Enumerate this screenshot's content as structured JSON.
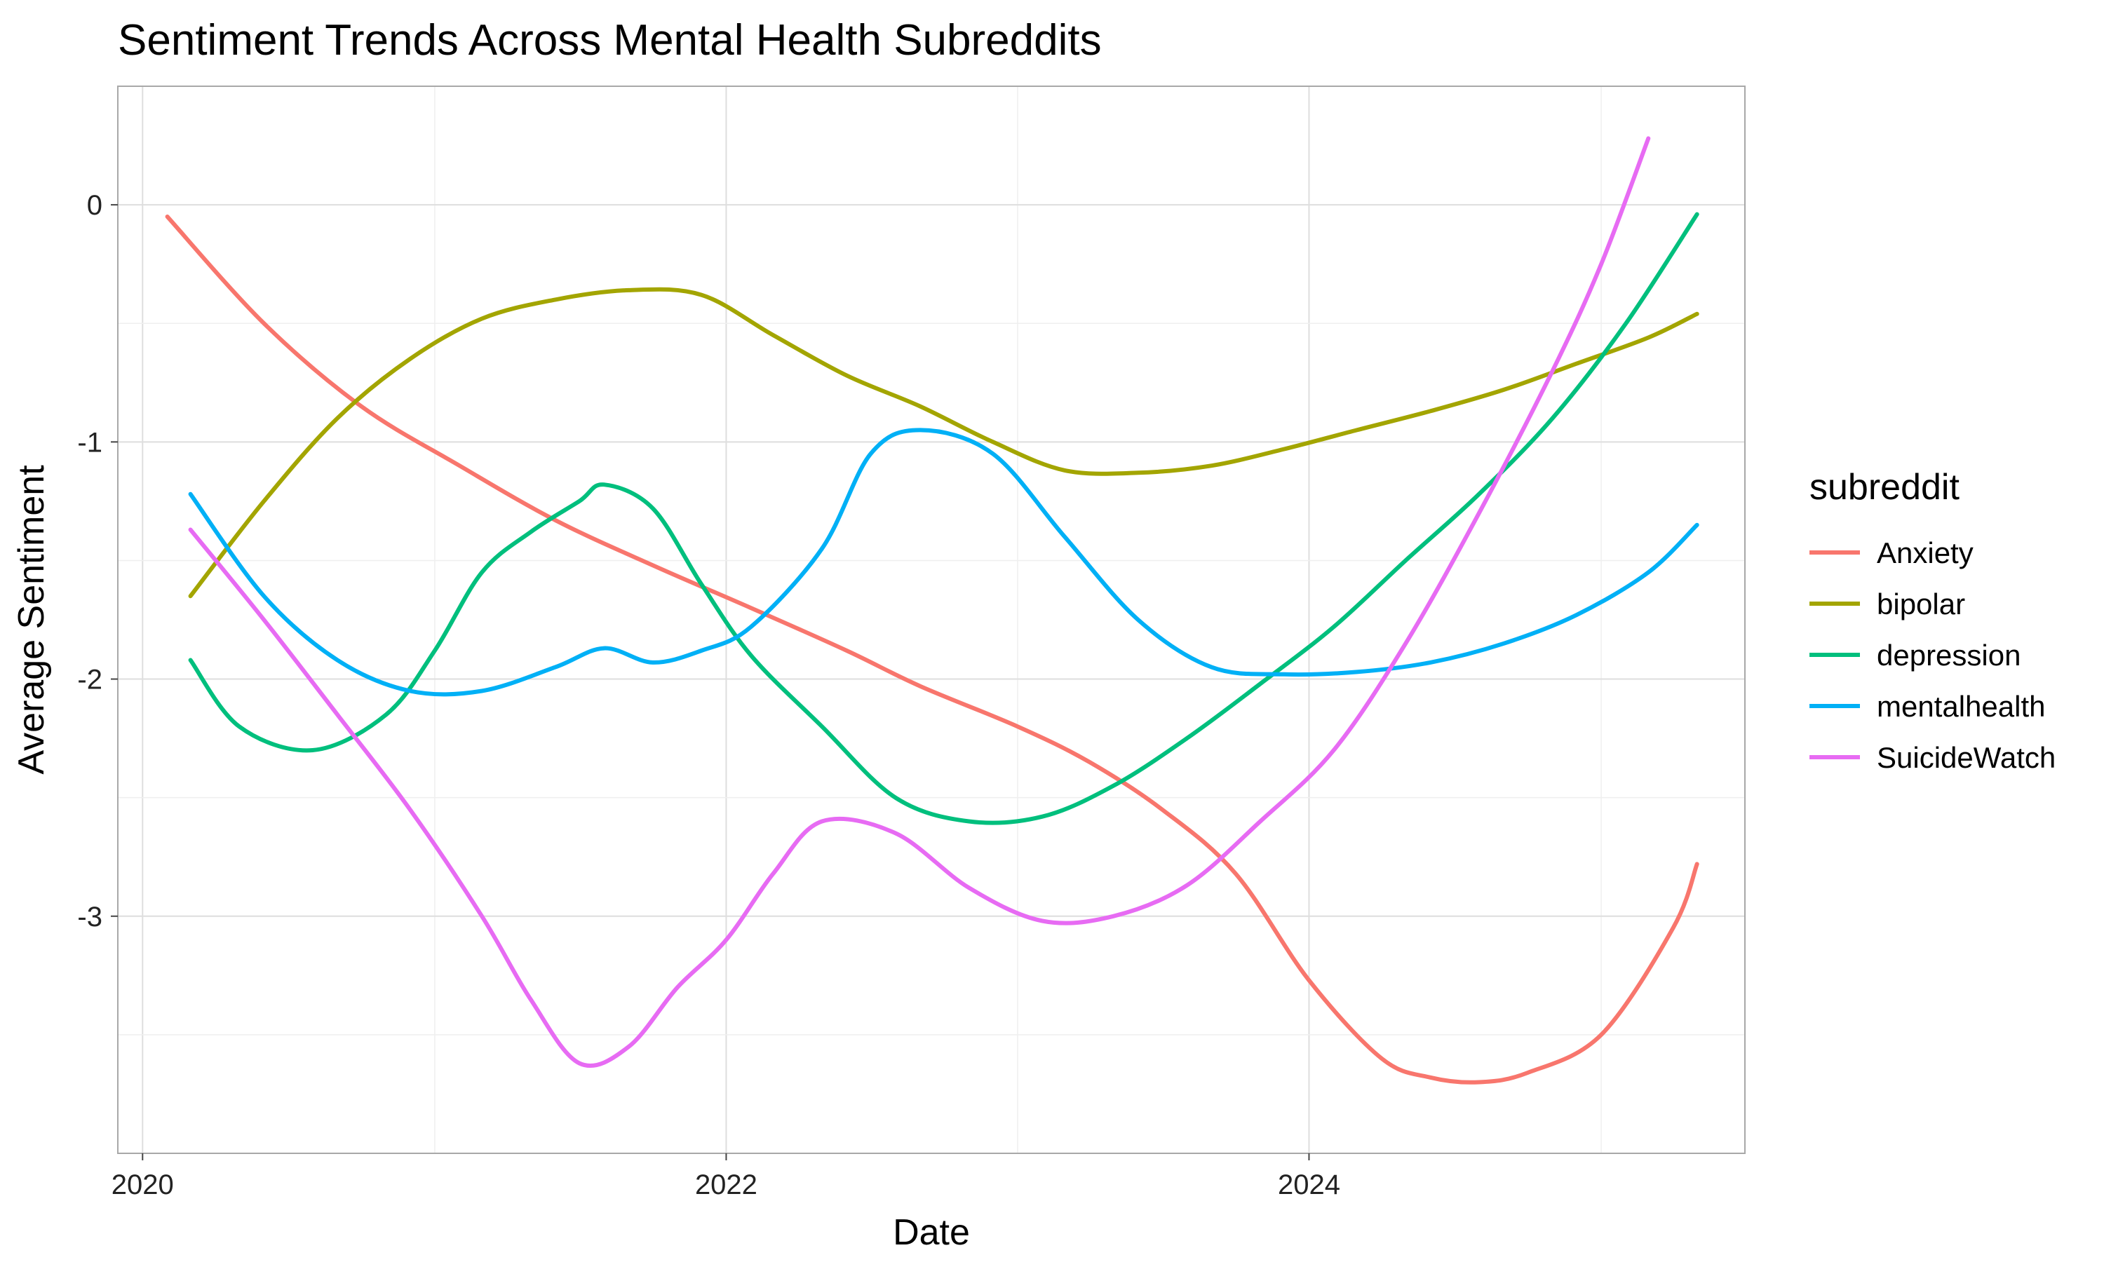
{
  "chart_data": {
    "type": "line",
    "title": "Sentiment Trends Across Mental Health Subreddits",
    "xlabel": "Date",
    "ylabel": "Average Sentiment",
    "x_axis_type": "date",
    "xlim": [
      "2019-12-01",
      "2025-06-30"
    ],
    "ylim": [
      -4.0,
      0.5
    ],
    "x_ticks": [
      {
        "value": "2020-01-01",
        "label": "2020"
      },
      {
        "value": "2022-01-01",
        "label": "2022"
      },
      {
        "value": "2024-01-01",
        "label": "2024"
      }
    ],
    "y_ticks": [
      0,
      -1,
      -2,
      -3
    ],
    "y_tick_labels": [
      "0",
      "-1",
      "-2",
      "-3"
    ],
    "grid": true,
    "legend": {
      "title": "subreddit",
      "position": "right"
    },
    "series": [
      {
        "name": "Anxiety",
        "color": "#F8766D",
        "x": [
          "2020-02-01",
          "2020-06-01",
          "2020-10-01",
          "2021-02-01",
          "2021-06-01",
          "2021-10-01",
          "2022-02-01",
          "2022-06-01",
          "2022-09-01",
          "2023-01-01",
          "2023-04-01",
          "2023-07-01",
          "2023-10-01",
          "2024-01-01",
          "2024-04-01",
          "2024-06-01",
          "2024-08-01",
          "2024-10-01",
          "2025-01-01",
          "2025-04-01",
          "2025-05-01"
        ],
        "y": [
          -0.05,
          -0.5,
          -0.85,
          -1.1,
          -1.33,
          -1.52,
          -1.7,
          -1.88,
          -2.03,
          -2.2,
          -2.35,
          -2.55,
          -2.82,
          -3.27,
          -3.6,
          -3.68,
          -3.7,
          -3.66,
          -3.5,
          -3.05,
          -2.78
        ]
      },
      {
        "name": "bipolar",
        "color": "#A3A500",
        "x": [
          "2020-03-01",
          "2020-06-01",
          "2020-09-01",
          "2020-12-01",
          "2021-03-01",
          "2021-06-01",
          "2021-09-01",
          "2021-12-01",
          "2022-03-01",
          "2022-06-01",
          "2022-09-01",
          "2022-12-01",
          "2023-03-01",
          "2023-06-01",
          "2023-09-01",
          "2023-12-01",
          "2024-03-01",
          "2024-06-01",
          "2024-09-01",
          "2024-12-01",
          "2025-03-01",
          "2025-05-01"
        ],
        "y": [
          -1.65,
          -1.25,
          -0.9,
          -0.65,
          -0.48,
          -0.4,
          -0.36,
          -0.38,
          -0.55,
          -0.72,
          -0.85,
          -1.0,
          -1.12,
          -1.13,
          -1.1,
          -1.03,
          -0.95,
          -0.87,
          -0.78,
          -0.67,
          -0.56,
          -0.46
        ]
      },
      {
        "name": "depression",
        "color": "#00BF7D",
        "x": [
          "2020-03-01",
          "2020-05-01",
          "2020-08-01",
          "2020-11-01",
          "2021-01-01",
          "2021-03-01",
          "2021-05-01",
          "2021-07-01",
          "2021-08-01",
          "2021-10-01",
          "2021-12-01",
          "2022-02-01",
          "2022-05-01",
          "2022-08-01",
          "2022-11-01",
          "2023-02-01",
          "2023-05-01",
          "2023-08-01",
          "2023-11-01",
          "2024-02-01",
          "2024-05-01",
          "2024-08-01",
          "2024-11-01",
          "2025-02-01",
          "2025-05-01"
        ],
        "y": [
          -1.92,
          -2.2,
          -2.3,
          -2.15,
          -1.88,
          -1.55,
          -1.38,
          -1.25,
          -1.18,
          -1.28,
          -1.6,
          -1.9,
          -2.2,
          -2.5,
          -2.6,
          -2.58,
          -2.45,
          -2.25,
          -2.02,
          -1.78,
          -1.5,
          -1.22,
          -0.9,
          -0.5,
          -0.04
        ]
      },
      {
        "name": "mentalhealth",
        "color": "#00B0F6",
        "x": [
          "2020-03-01",
          "2020-06-01",
          "2020-09-01",
          "2020-12-01",
          "2021-03-01",
          "2021-06-01",
          "2021-08-01",
          "2021-10-01",
          "2021-12-01",
          "2022-02-01",
          "2022-05-01",
          "2022-07-01",
          "2022-09-01",
          "2022-12-01",
          "2023-03-01",
          "2023-06-01",
          "2023-09-01",
          "2023-12-01",
          "2024-03-01",
          "2024-06-01",
          "2024-09-01",
          "2024-12-01",
          "2025-03-01",
          "2025-05-01"
        ],
        "y": [
          -1.22,
          -1.65,
          -1.92,
          -2.05,
          -2.05,
          -1.95,
          -1.87,
          -1.93,
          -1.88,
          -1.78,
          -1.45,
          -1.05,
          -0.95,
          -1.05,
          -1.4,
          -1.75,
          -1.95,
          -1.98,
          -1.97,
          -1.93,
          -1.85,
          -1.73,
          -1.55,
          -1.35
        ]
      },
      {
        "name": "SuicideWatch",
        "color": "#E76BF3",
        "x": [
          "2020-03-01",
          "2020-06-01",
          "2020-09-01",
          "2020-12-01",
          "2021-03-01",
          "2021-05-01",
          "2021-07-01",
          "2021-09-01",
          "2021-11-01",
          "2022-01-01",
          "2022-03-01",
          "2022-05-01",
          "2022-08-01",
          "2022-11-01",
          "2023-02-01",
          "2023-05-01",
          "2023-08-01",
          "2023-11-01",
          "2024-02-01",
          "2024-05-01",
          "2024-08-01",
          "2024-11-01",
          "2025-01-01",
          "2025-03-01"
        ],
        "y": [
          -1.37,
          -1.75,
          -2.15,
          -2.55,
          -3.0,
          -3.35,
          -3.62,
          -3.55,
          -3.3,
          -3.1,
          -2.82,
          -2.6,
          -2.65,
          -2.88,
          -3.02,
          -3.0,
          -2.87,
          -2.6,
          -2.3,
          -1.85,
          -1.3,
          -0.7,
          -0.25,
          0.28
        ]
      }
    ]
  }
}
